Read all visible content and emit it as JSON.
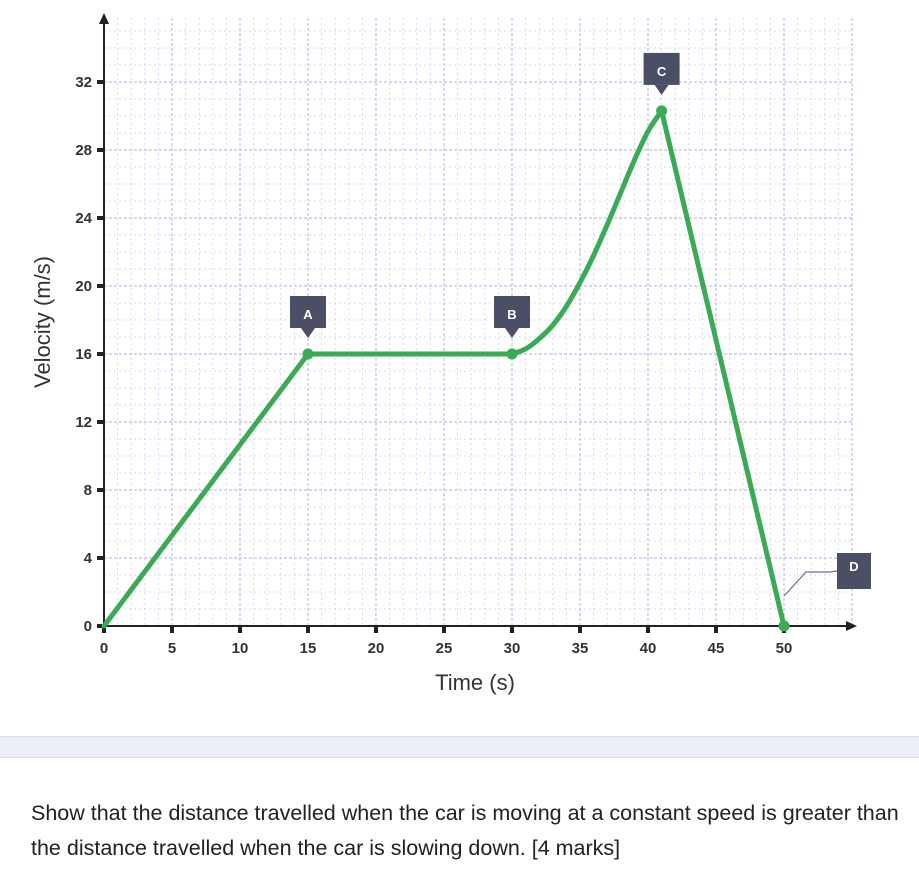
{
  "chart_data": {
    "type": "line",
    "xlabel": "Time (s)",
    "ylabel": "Velocity (m/s)",
    "xlim": [
      0,
      55
    ],
    "ylim": [
      0,
      34.5
    ],
    "x_ticks": [
      0,
      5,
      10,
      15,
      20,
      25,
      30,
      35,
      40,
      45,
      50
    ],
    "y_ticks": [
      0,
      4,
      8,
      12,
      16,
      20,
      24,
      28,
      32
    ],
    "grid": true,
    "series": [
      {
        "points": [
          [
            0,
            0
          ],
          [
            15,
            16
          ],
          [
            30,
            16
          ],
          [
            31,
            16.3
          ],
          [
            32,
            16.9
          ],
          [
            33,
            17.7
          ],
          [
            34,
            18.8
          ],
          [
            35,
            20.2
          ],
          [
            36,
            21.8
          ],
          [
            37,
            23.6
          ],
          [
            38,
            25.5
          ],
          [
            39,
            27.4
          ],
          [
            40,
            29.1
          ],
          [
            41,
            30.3
          ],
          [
            50,
            0
          ]
        ]
      }
    ],
    "points_labeled": [
      {
        "label": "A",
        "x": 15,
        "y": 16
      },
      {
        "label": "B",
        "x": 30,
        "y": 16
      },
      {
        "label": "C",
        "x": 41,
        "y": 30.3
      },
      {
        "label": "D",
        "x": 50,
        "y": 0
      }
    ],
    "colors": {
      "line": "#3aaa54",
      "callout": "#4b4f66",
      "grid": "#b9c2e6"
    }
  },
  "question": {
    "text": "Show that the distance travelled when the car is moving at a constant speed is greater than the distance travelled when the car is slowing down. [4 marks]"
  }
}
